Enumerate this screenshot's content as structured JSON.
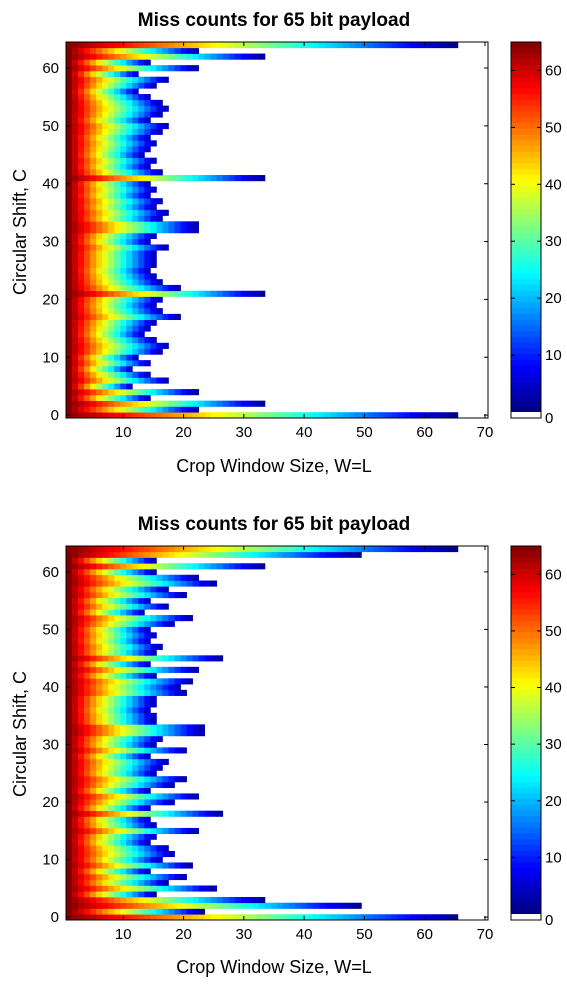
{
  "chart_data": [
    {
      "type": "heatmap",
      "title": "Miss counts for 65 bit payload",
      "xlabel": "Crop Window Size, W=L",
      "ylabel": "Circular Shift, C",
      "xlim": [
        0.5,
        70.5
      ],
      "ylim": [
        -0.5,
        64.5
      ],
      "x_ticks": [
        "10",
        "20",
        "30",
        "40",
        "50",
        "60",
        "70"
      ],
      "y_ticks": [
        "0",
        "10",
        "20",
        "30",
        "40",
        "50",
        "60"
      ],
      "colorbar": {
        "min": 0,
        "max": 65,
        "ticks": [
          "0",
          "10",
          "20",
          "30",
          "40",
          "50",
          "60"
        ],
        "colormap": "jet",
        "zero_color": "#ffffff"
      },
      "grid": false,
      "row_max_window": [
        65,
        22,
        33,
        14,
        22,
        11,
        17,
        14,
        11,
        14,
        12,
        16,
        17,
        15,
        13,
        14,
        15,
        19,
        16,
        15,
        16,
        33,
        19,
        16,
        15,
        14,
        15,
        15,
        15,
        17,
        14,
        15,
        22,
        22,
        16,
        17,
        15,
        16,
        14,
        15,
        14,
        33,
        16,
        14,
        15,
        13,
        14,
        15,
        14,
        16,
        17,
        14,
        16,
        17,
        16,
        14,
        12,
        15,
        17,
        12,
        22,
        14,
        33,
        22,
        65
      ]
    },
    {
      "type": "heatmap",
      "title": "Miss counts for 65 bit payload",
      "xlabel": "Crop Window Size, W=L",
      "ylabel": "Circular Shift, C",
      "xlim": [
        0.5,
        70.5
      ],
      "ylim": [
        -0.5,
        64.5
      ],
      "x_ticks": [
        "10",
        "20",
        "30",
        "40",
        "50",
        "60",
        "70"
      ],
      "y_ticks": [
        "0",
        "10",
        "20",
        "30",
        "40",
        "50",
        "60"
      ],
      "colorbar": {
        "min": 0,
        "max": 65,
        "ticks": [
          "0",
          "10",
          "20",
          "30",
          "40",
          "50",
          "60"
        ],
        "colormap": "jet",
        "zero_color": "#ffffff"
      },
      "grid": false,
      "row_max_window": [
        65,
        23,
        49,
        33,
        15,
        25,
        17,
        20,
        14,
        21,
        16,
        18,
        17,
        14,
        15,
        22,
        15,
        14,
        26,
        14,
        18,
        22,
        14,
        18,
        20,
        15,
        16,
        17,
        14,
        20,
        15,
        16,
        23,
        23,
        15,
        15,
        14,
        15,
        15,
        20,
        19,
        21,
        15,
        22,
        14,
        26,
        15,
        16,
        14,
        15,
        14,
        18,
        21,
        13,
        17,
        14,
        20,
        17,
        25,
        22,
        15,
        33,
        15,
        49,
        65
      ]
    }
  ]
}
